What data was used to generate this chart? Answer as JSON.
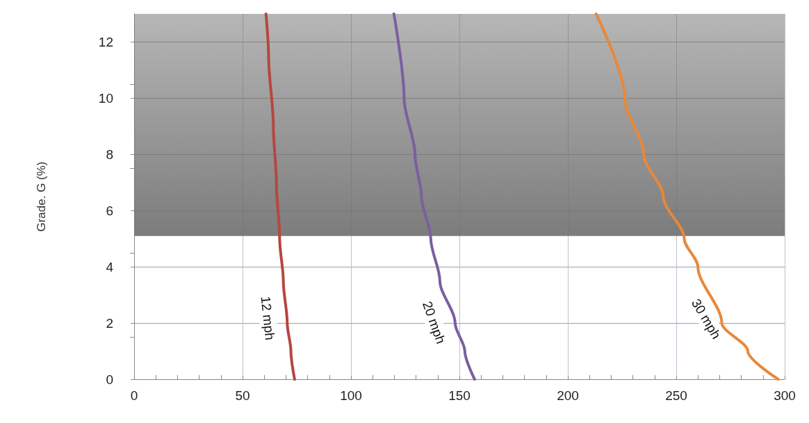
{
  "chart_data": {
    "type": "line",
    "ylabel": "Grade. G (%)",
    "xlim": [
      0,
      300
    ],
    "xticks": [
      0,
      50,
      100,
      150,
      200,
      250,
      300
    ],
    "ylim": [
      0,
      13
    ],
    "yticks": [
      0,
      2,
      4,
      6,
      8,
      10,
      12
    ],
    "grid": true,
    "marker": "none",
    "line_style": "solid",
    "series": [
      {
        "name": "12 mph",
        "color": "#b5473f",
        "x": [
          74,
          72.3,
          70.6,
          68.8,
          67.1,
          65.6,
          64.2,
          62,
          60.8
        ],
        "values": [
          0,
          1,
          2,
          3.5,
          5,
          7,
          9,
          11.5,
          13
        ]
      },
      {
        "name": "20 mph",
        "color": "#7a5fa0",
        "x": [
          157,
          152.5,
          148,
          141,
          136.8,
          132.5,
          129.5,
          124.5,
          119.8
        ],
        "values": [
          0,
          1,
          2,
          3.5,
          5,
          6.5,
          8,
          10,
          13
        ]
      },
      {
        "name": "30 mph",
        "color": "#e8883a",
        "x": [
          297,
          283,
          271,
          260,
          253.7,
          244,
          235,
          226.3,
          213
        ],
        "values": [
          0,
          1,
          2,
          4,
          5,
          6.5,
          8,
          10,
          13
        ]
      }
    ],
    "bands": [
      {
        "axis": "y",
        "from": 5.1,
        "to": 13,
        "color": "#6e6e6e"
      }
    ]
  }
}
